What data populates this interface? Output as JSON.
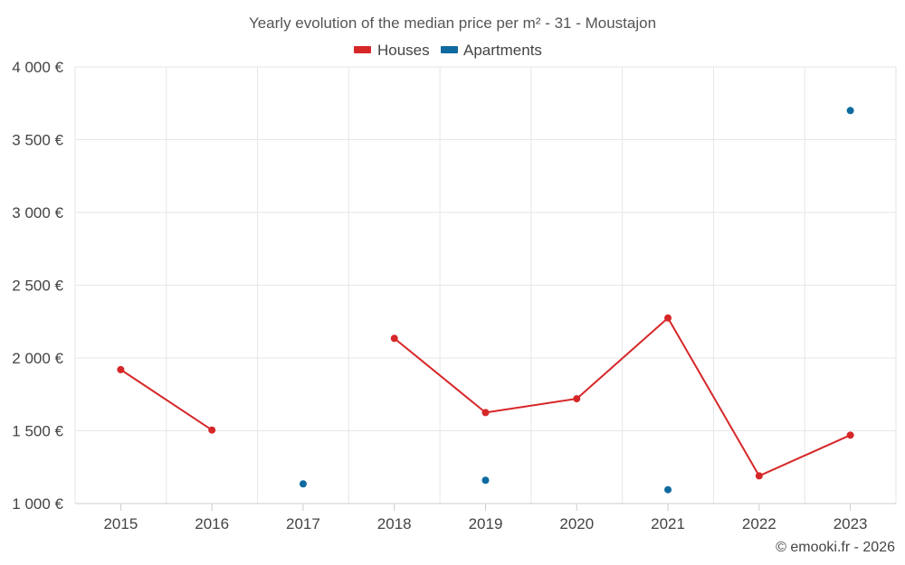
{
  "chart_data": {
    "type": "line",
    "title": "Yearly evolution of the median price per m² - 31 - Moustajon",
    "categories": [
      "2015",
      "2016",
      "2017",
      "2018",
      "2019",
      "2020",
      "2021",
      "2022",
      "2023"
    ],
    "ylim": [
      1000,
      4000
    ],
    "yticks": [
      1000,
      1500,
      2000,
      2500,
      3000,
      3500,
      4000
    ],
    "ytick_labels": [
      "1 000 €",
      "1 500 €",
      "2 000 €",
      "2 500 €",
      "3 000 €",
      "3 500 €",
      "4 000 €"
    ],
    "grid": true,
    "legend_position": "top-center",
    "series": [
      {
        "name": "Houses",
        "color": "#d62728",
        "values": [
          1920,
          1505,
          null,
          2135,
          1625,
          1720,
          2275,
          1190,
          1470
        ]
      },
      {
        "name": "Apartments",
        "color": "#0f6aa0",
        "values": [
          null,
          null,
          1135,
          null,
          1160,
          null,
          1095,
          null,
          3700
        ]
      }
    ],
    "credit": "© emooki.fr - 2026"
  }
}
